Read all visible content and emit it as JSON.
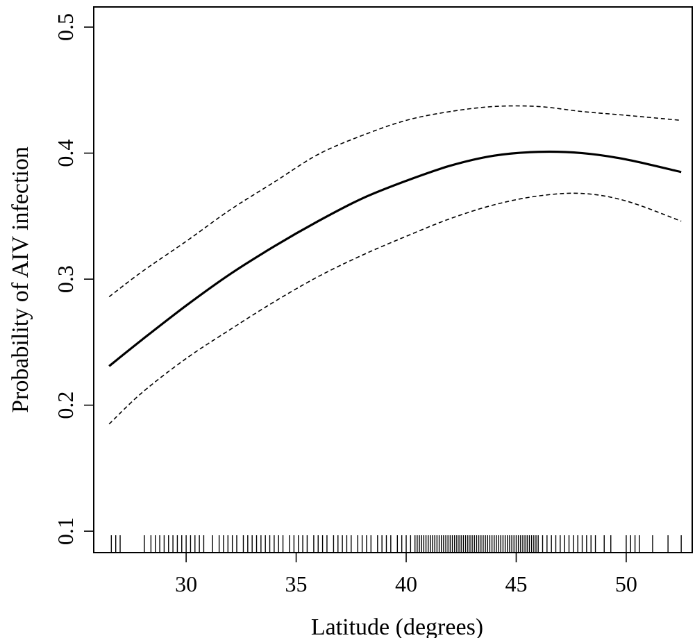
{
  "chart_data": {
    "type": "line",
    "title": "",
    "xlabel": "Latitude (degrees)",
    "ylabel": "Probability of AIV infection",
    "xlim": [
      25.8,
      53.0
    ],
    "ylim": [
      0.083,
      0.516
    ],
    "x_ticks": [
      30,
      35,
      40,
      45,
      50
    ],
    "x_tick_labels": [
      "30",
      "35",
      "40",
      "45",
      "50"
    ],
    "y_ticks": [
      0.1,
      0.2,
      0.3,
      0.4,
      0.5
    ],
    "y_tick_labels": [
      "0.1",
      "0.2",
      "0.3",
      "0.4",
      "0.5"
    ],
    "grid": false,
    "legend": "none",
    "series": [
      {
        "role": "fit",
        "style": "solid",
        "color": "#000000",
        "x": [
          26.5,
          28,
          30,
          32,
          34,
          36,
          38,
          40,
          42,
          44,
          46,
          48,
          50,
          52.5
        ],
        "y": [
          0.231,
          0.252,
          0.279,
          0.304,
          0.326,
          0.346,
          0.364,
          0.378,
          0.39,
          0.398,
          0.401,
          0.4,
          0.395,
          0.385
        ]
      },
      {
        "role": "upper-ci",
        "style": "dashed",
        "color": "#000000",
        "x": [
          26.5,
          28,
          30,
          32,
          34,
          36,
          38,
          40,
          42,
          44,
          46,
          48,
          50,
          52.5
        ],
        "y": [
          0.286,
          0.306,
          0.33,
          0.355,
          0.377,
          0.399,
          0.414,
          0.426,
          0.433,
          0.437,
          0.437,
          0.433,
          0.43,
          0.426
        ]
      },
      {
        "role": "lower-ci",
        "style": "dashed",
        "color": "#000000",
        "x": [
          26.5,
          28,
          30,
          32,
          34,
          36,
          38,
          40,
          42,
          44,
          46,
          48,
          50,
          52.5
        ],
        "y": [
          0.185,
          0.21,
          0.237,
          0.26,
          0.282,
          0.302,
          0.319,
          0.334,
          0.348,
          0.359,
          0.366,
          0.368,
          0.362,
          0.346
        ]
      }
    ],
    "rug": [
      26.6,
      26.8,
      27.0,
      28.1,
      28.4,
      28.6,
      28.8,
      29.0,
      29.2,
      29.4,
      29.6,
      29.8,
      30.0,
      30.2,
      30.4,
      30.6,
      30.8,
      31.2,
      31.5,
      31.7,
      31.9,
      32.1,
      32.3,
      32.6,
      32.8,
      33.0,
      33.2,
      33.4,
      33.6,
      33.8,
      34.0,
      34.2,
      34.4,
      34.7,
      34.9,
      35.1,
      35.3,
      35.5,
      35.8,
      36.0,
      36.2,
      36.4,
      36.7,
      36.9,
      37.1,
      37.3,
      37.5,
      37.8,
      38.0,
      38.2,
      38.4,
      38.7,
      38.9,
      39.1,
      39.3,
      39.6,
      39.8,
      40.0,
      40.2,
      40.4,
      40.5,
      40.6,
      40.7,
      40.8,
      40.9,
      41.0,
      41.1,
      41.2,
      41.3,
      41.4,
      41.5,
      41.6,
      41.7,
      41.8,
      41.9,
      42.0,
      42.1,
      42.2,
      42.3,
      42.4,
      42.5,
      42.6,
      42.7,
      42.8,
      42.9,
      43.0,
      43.1,
      43.2,
      43.3,
      43.4,
      43.5,
      43.6,
      43.7,
      43.8,
      43.9,
      44.0,
      44.1,
      44.2,
      44.3,
      44.4,
      44.5,
      44.6,
      44.7,
      44.8,
      44.9,
      45.0,
      45.1,
      45.2,
      45.3,
      45.4,
      45.5,
      45.6,
      45.7,
      45.8,
      45.9,
      46.0,
      46.2,
      46.4,
      46.6,
      46.8,
      47.0,
      47.2,
      47.4,
      47.6,
      47.8,
      48.0,
      48.2,
      48.4,
      48.6,
      49.0,
      49.3,
      50.0,
      50.2,
      50.4,
      50.6,
      51.2,
      51.9,
      52.5
    ]
  }
}
